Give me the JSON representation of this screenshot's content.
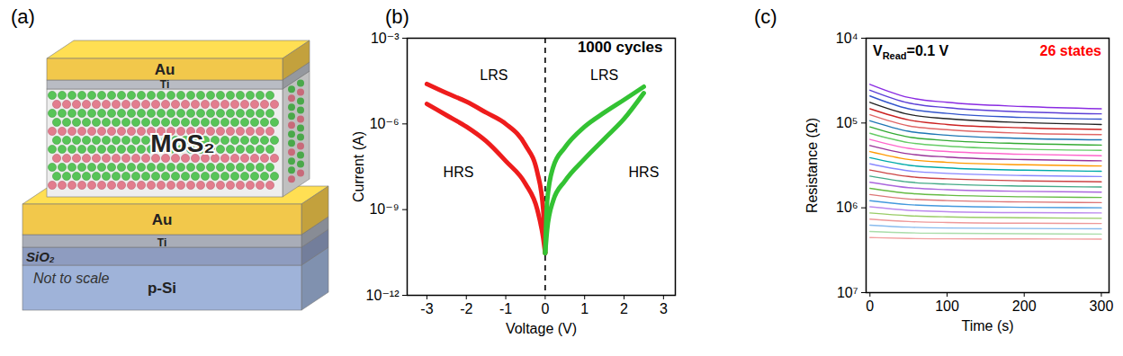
{
  "panel_labels": [
    "(a)",
    "(b)",
    "(c)"
  ],
  "diagram": {
    "layers": [
      {
        "label": "Au",
        "color": "#f2c84b"
      },
      {
        "label": "Ti",
        "color": "#b9bcc4"
      },
      {
        "label": "MoS₂",
        "color": "#eeeeee"
      },
      {
        "label": "Au",
        "color": "#f2c84b"
      },
      {
        "label": "Ti",
        "color": "#a9adb8"
      },
      {
        "label": "SiO₂",
        "color": "#8e9cc0"
      },
      {
        "label": "p-Si",
        "color": "#9fb3d9"
      }
    ],
    "note": "Not to scale"
  },
  "chart_data": [
    {
      "type": "line",
      "xlabel": "Voltage (V)",
      "ylabel": "Current (A)",
      "log": "y",
      "xlim": [
        -3.5,
        3.3
      ],
      "xticks": [
        -3,
        -2,
        -1,
        0,
        1,
        2,
        3
      ],
      "ylim": [
        1e-12,
        0.001
      ],
      "yticks": [
        {
          "value": 1e-12,
          "label": "10⁻¹²"
        },
        {
          "value": 1e-09,
          "label": "10⁻⁹"
        },
        {
          "value": 1e-06,
          "label": "10⁻⁶"
        },
        {
          "value": 0.001,
          "label": "10⁻³"
        }
      ],
      "reference_line": {
        "x": 0,
        "line_style": "dashed"
      },
      "annotations": [
        {
          "text": "1000 cycles",
          "x": 1.9,
          "y": 0.0005
        },
        {
          "text": "LRS",
          "x": -1.3,
          "y": 5e-05
        },
        {
          "text": "HRS",
          "x": -2.2,
          "y": 2e-08
        },
        {
          "text": "LRS",
          "x": 1.5,
          "y": 5e-05
        },
        {
          "text": "HRS",
          "x": 2.5,
          "y": 2e-08
        }
      ],
      "series": [
        {
          "color": "#ee1c1c",
          "x": [
            -3,
            -2.5,
            -2,
            -1.5,
            -1,
            -0.5,
            -0.2,
            -0.05,
            0
          ],
          "values": [
            2.5e-05,
            1.2e-05,
            6e-06,
            2.5e-06,
            1e-06,
            1.8e-07,
            2e-08,
            1e-09,
            3e-11
          ]
        },
        {
          "color": "#ee1c1c",
          "x": [
            -3,
            -2.5,
            -2,
            -1.5,
            -1,
            -0.5,
            -0.2,
            -0.05,
            0
          ],
          "values": [
            5e-06,
            2e-06,
            8e-07,
            2.5e-07,
            5e-08,
            8e-09,
            1e-09,
            1e-10,
            3e-11
          ]
        },
        {
          "color": "#33c233",
          "x": [
            0,
            0.05,
            0.2,
            0.5,
            1,
            1.5,
            2,
            2.5
          ],
          "values": [
            3e-11,
            2e-09,
            3e-08,
            1.5e-07,
            8e-07,
            2.5e-06,
            7e-06,
            2e-05
          ]
        },
        {
          "color": "#33c233",
          "x": [
            0,
            0.05,
            0.2,
            0.5,
            1,
            1.5,
            2,
            2.5
          ],
          "values": [
            3e-11,
            2e-10,
            2e-09,
            1e-08,
            6e-08,
            3e-07,
            1.5e-06,
            1.2e-05
          ]
        }
      ]
    },
    {
      "type": "line",
      "xlabel": "Time (s)",
      "ylabel": "Resistance (Ω)",
      "log": "y",
      "xlim": [
        -5,
        310
      ],
      "xticks": [
        0,
        100,
        200,
        300
      ],
      "ylim": [
        10000000,
        10000
      ],
      "yticks": [
        {
          "value": 10000,
          "label": "10⁴"
        },
        {
          "value": 100000,
          "label": "10⁵"
        },
        {
          "value": 1000000,
          "label": "10⁶"
        },
        {
          "value": 10000000,
          "label": "10⁷"
        }
      ],
      "annotations": [
        {
          "text": "VRead=0.1 V",
          "subscript": "Read"
        },
        {
          "text": "26 states",
          "color": "#ff0000"
        }
      ],
      "x": [
        0,
        50,
        100,
        200,
        300
      ],
      "series": [
        {
          "color": "#8a2be2",
          "values": [
            35000,
            50000,
            57000,
            64000,
            68000
          ]
        },
        {
          "color": "#5b3fd6",
          "values": [
            41000,
            58000,
            66000,
            74000,
            78000
          ]
        },
        {
          "color": "#3355cc",
          "values": [
            48000,
            68000,
            77000,
            86000,
            90000
          ]
        },
        {
          "color": "#222222",
          "values": [
            57000,
            79000,
            89000,
            99000,
            104000
          ]
        },
        {
          "color": "#cc2222",
          "values": [
            68000,
            92000,
            104000,
            114000,
            119000
          ]
        },
        {
          "color": "#e06666",
          "values": [
            80000,
            108000,
            120000,
            132000,
            137000
          ]
        },
        {
          "color": "#1f77b4",
          "values": [
            94000,
            125000,
            139000,
            152000,
            158000
          ]
        },
        {
          "color": "#33aa33",
          "values": [
            111000,
            146000,
            161000,
            175000,
            182000
          ]
        },
        {
          "color": "#66cc66",
          "values": [
            132000,
            170000,
            187000,
            203000,
            210000
          ]
        },
        {
          "color": "#ff66cc",
          "values": [
            156000,
            199000,
            217000,
            234000,
            243000
          ]
        },
        {
          "color": "#993399",
          "values": [
            184000,
            231000,
            252000,
            270000,
            279000
          ]
        },
        {
          "color": "#ff9900",
          "values": [
            217000,
            269000,
            291000,
            311000,
            321000
          ]
        },
        {
          "color": "#00aaaa",
          "values": [
            256000,
            314000,
            338000,
            360000,
            371000
          ]
        },
        {
          "color": "#8888ff",
          "values": [
            303000,
            366000,
            393000,
            416000,
            428000
          ]
        },
        {
          "color": "#cc4444",
          "values": [
            358000,
            427000,
            455000,
            481000,
            493000
          ]
        },
        {
          "color": "#44aa88",
          "values": [
            423000,
            497000,
            527000,
            555000,
            568000
          ]
        },
        {
          "color": "#aa66dd",
          "values": [
            499000,
            578000,
            611000,
            640000,
            653000
          ]
        },
        {
          "color": "#66bb44",
          "values": [
            590000,
            675000,
            710000,
            740000,
            754000
          ]
        },
        {
          "color": "#dd7777",
          "values": [
            697000,
            787000,
            822000,
            853000,
            869000
          ]
        },
        {
          "color": "#4499dd",
          "values": [
            824000,
            918000,
            955000,
            986000,
            1000000
          ]
        },
        {
          "color": "#bb88ee",
          "values": [
            973000,
            1070000,
            1110000,
            1140000,
            1150000
          ]
        },
        {
          "color": "#99cc66",
          "values": [
            1150000,
            1240000,
            1280000,
            1310000,
            1330000
          ]
        },
        {
          "color": "#ee9999",
          "values": [
            1360000,
            1450000,
            1490000,
            1520000,
            1530000
          ]
        },
        {
          "color": "#88bbee",
          "values": [
            1600000,
            1690000,
            1730000,
            1750000,
            1770000
          ]
        },
        {
          "color": "#aaddaa",
          "values": [
            1900000,
            1970000,
            2000000,
            2020000,
            2040000
          ]
        },
        {
          "color": "#f2a0a0",
          "values": [
            2240000,
            2300000,
            2320000,
            2330000,
            2340000
          ]
        }
      ]
    }
  ]
}
